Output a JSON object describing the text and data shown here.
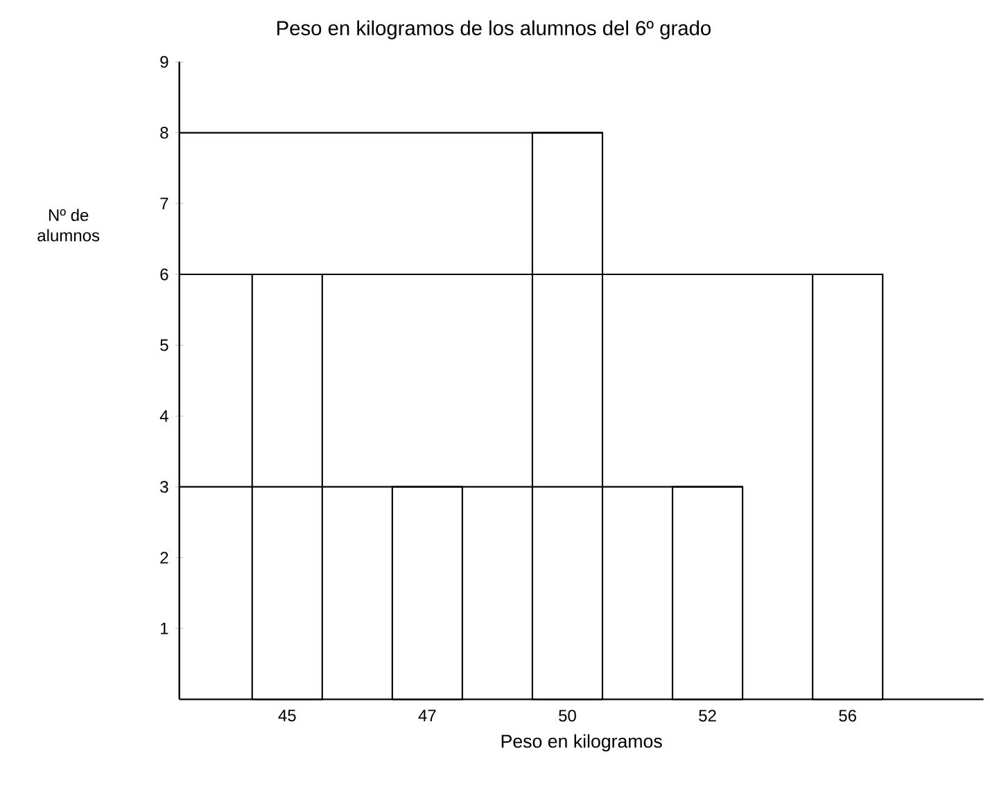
{
  "chart_data": {
    "type": "bar",
    "title": "Peso en kilogramos de los alumnos del  6º grado",
    "xlabel": "Peso en kilogramos",
    "ylabel": "Nº de alumnos",
    "categories": [
      "45",
      "47",
      "50",
      "52",
      "56"
    ],
    "values": [
      6,
      3,
      8,
      3,
      6
    ],
    "color": "#ffffff",
    "ylim": [
      0,
      9
    ],
    "yticks": [
      1,
      2,
      3,
      4,
      5,
      6,
      7,
      8,
      9
    ],
    "ref_lines": [
      {
        "axis": "y",
        "value": 3
      },
      {
        "axis": "y",
        "value": 6
      },
      {
        "axis": "y",
        "value": 8
      }
    ],
    "grid": false
  }
}
